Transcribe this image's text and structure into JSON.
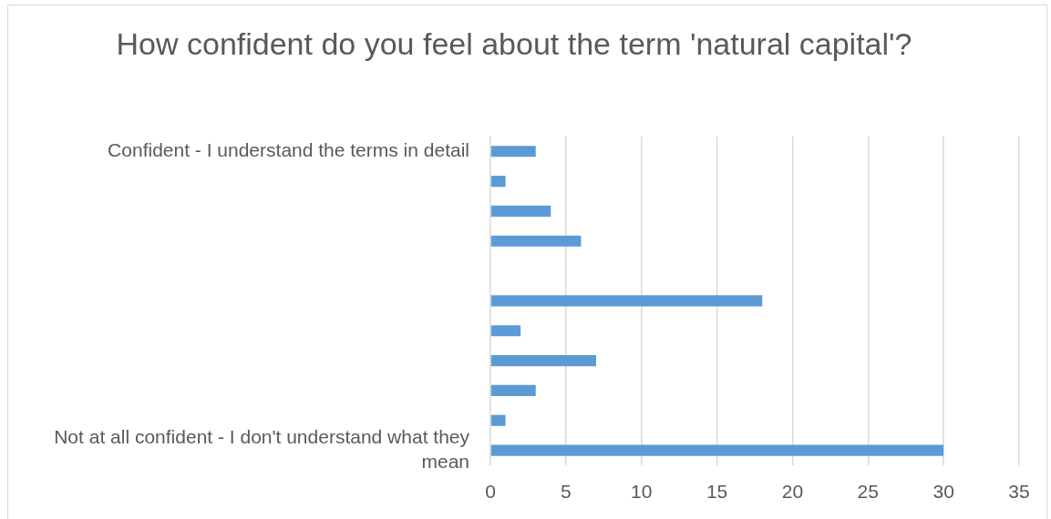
{
  "chart_data": {
    "type": "bar",
    "orientation": "horizontal",
    "title": "How confident do you feel about the term 'natural capital'?",
    "categories": [
      "Confident - I understand the terms in detail",
      null,
      null,
      null,
      null,
      null,
      null,
      null,
      null,
      null,
      "Not at all confident - I don't understand what they mean"
    ],
    "values": [
      3,
      1,
      4,
      6,
      0,
      18,
      2,
      7,
      3,
      1,
      30
    ],
    "color": "#5b9bd5",
    "xlim": [
      0,
      35
    ],
    "xticks": [
      0,
      5,
      10,
      15,
      20,
      25,
      30,
      35
    ],
    "grid": "x"
  }
}
